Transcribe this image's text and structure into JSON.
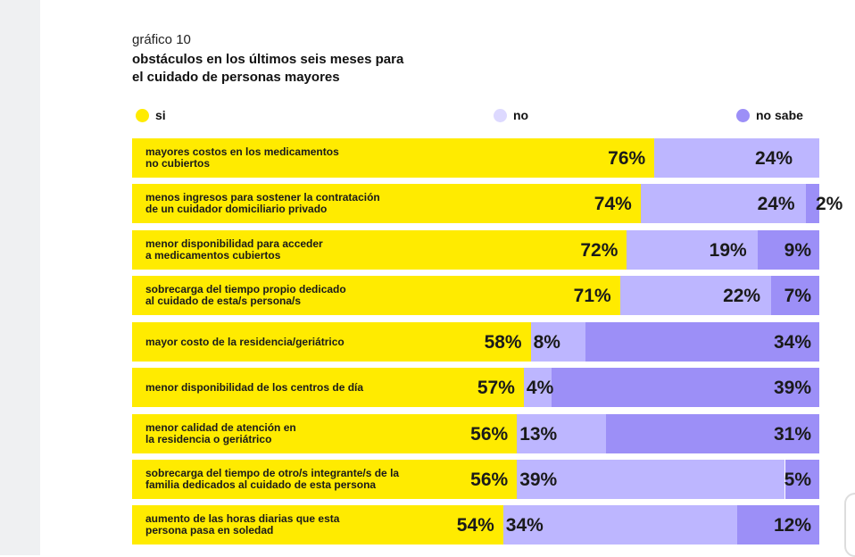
{
  "subtitle": "gráfico 10",
  "title": "obstáculos en los últimos seis meses para\nel cuidado de personas mayores",
  "chart_data": {
    "type": "bar",
    "orientation": "horizontal-stacked-100",
    "title": "obstáculos en los últimos seis meses para el cuidado de personas mayores",
    "subtitle": "gráfico 10",
    "legend": [
      {
        "name": "si",
        "color": "#FFEB00"
      },
      {
        "name": "no",
        "color": "#BDB6FF"
      },
      {
        "name": "no sabe",
        "color": "#9C8FF7"
      }
    ],
    "legend_placement": "top",
    "categories": [
      "mayores costos en los medicamentos\nno cubiertos",
      "menos ingresos para sostener la contratación\nde un cuidador domiciliario privado",
      "menor disponibilidad para acceder\na medicamentos cubiertos",
      "sobrecarga del tiempo propio dedicado\nal cuidado de esta/s persona/s",
      "mayor costo de la residencia/geriátrico",
      "menor disponibilidad de los centros de día",
      "menor calidad de atención en\nla residencia o geriátrico",
      "sobrecarga del tiempo de otro/s integrante/s de la\nfamilia dedicados al cuidado de esta persona",
      "aumento de las horas diarias que esta\npersona pasa en soledad"
    ],
    "series": [
      {
        "name": "si",
        "values": [
          76,
          74,
          72,
          71,
          58,
          57,
          56,
          56,
          54
        ]
      },
      {
        "name": "no",
        "values": [
          24,
          24,
          19,
          22,
          8,
          4,
          13,
          39,
          34
        ]
      },
      {
        "name": "no sabe",
        "values": [
          0,
          2,
          9,
          7,
          34,
          39,
          31,
          5,
          12
        ]
      }
    ],
    "labels": [
      [
        "76%",
        "24%",
        ""
      ],
      [
        "74%",
        "24%",
        "2%"
      ],
      [
        "72%",
        "19%",
        "9%"
      ],
      [
        "71%",
        "22%",
        "7%"
      ],
      [
        "58%",
        "8%",
        "34%"
      ],
      [
        "57%",
        "4%",
        "39%"
      ],
      [
        "56%",
        "13%",
        "31%"
      ],
      [
        "56%",
        "39%",
        "5%"
      ],
      [
        "54%",
        "34%",
        "12%"
      ]
    ],
    "xlim": [
      0,
      100
    ]
  }
}
